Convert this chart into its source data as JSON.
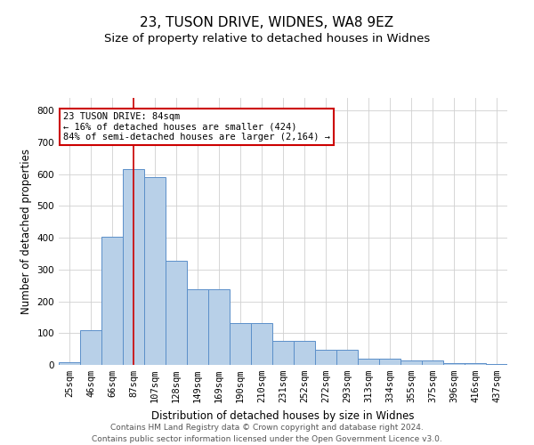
{
  "title": "23, TUSON DRIVE, WIDNES, WA8 9EZ",
  "subtitle": "Size of property relative to detached houses in Widnes",
  "xlabel": "Distribution of detached houses by size in Widnes",
  "ylabel": "Number of detached properties",
  "footer1": "Contains HM Land Registry data © Crown copyright and database right 2024.",
  "footer2": "Contains public sector information licensed under the Open Government Licence v3.0.",
  "bin_labels": [
    "25sqm",
    "46sqm",
    "66sqm",
    "87sqm",
    "107sqm",
    "128sqm",
    "149sqm",
    "169sqm",
    "190sqm",
    "210sqm",
    "231sqm",
    "252sqm",
    "272sqm",
    "293sqm",
    "313sqm",
    "334sqm",
    "355sqm",
    "375sqm",
    "396sqm",
    "416sqm",
    "437sqm"
  ],
  "bar_values": [
    8,
    108,
    403,
    617,
    592,
    328,
    238,
    238,
    133,
    133,
    76,
    76,
    47,
    47,
    20,
    20,
    13,
    13,
    5,
    5,
    2
  ],
  "bar_color": "#b8d0e8",
  "bar_edge_color": "#5b8fc9",
  "bar_width": 1.0,
  "vline_x_index": 3,
  "vline_color": "#cc0000",
  "ylim": [
    0,
    840
  ],
  "yticks": [
    0,
    100,
    200,
    300,
    400,
    500,
    600,
    700,
    800
  ],
  "annotation_text": "23 TUSON DRIVE: 84sqm\n← 16% of detached houses are smaller (424)\n84% of semi-detached houses are larger (2,164) →",
  "annotation_box_color": "#ffffff",
  "annotation_box_edge": "#cc0000",
  "bg_color": "#ffffff",
  "grid_color": "#d0d0d0",
  "title_fontsize": 11,
  "subtitle_fontsize": 9.5,
  "axis_label_fontsize": 8.5,
  "tick_fontsize": 7.5,
  "footer_fontsize": 6.5,
  "annot_fontsize": 7.5
}
